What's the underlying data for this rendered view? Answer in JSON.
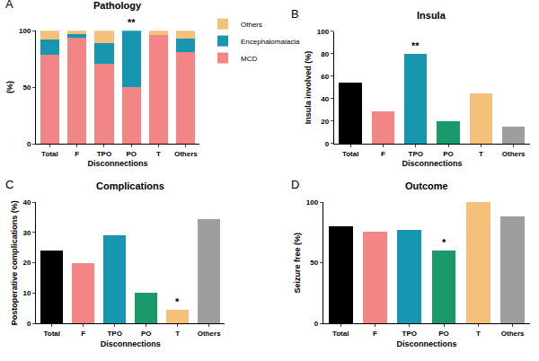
{
  "chart_data": [
    {
      "panel": "A",
      "type": "bar",
      "stacked": true,
      "title": "Pathology",
      "x_label": "Disconnections",
      "y_label": "(%)",
      "categories": [
        "Total",
        "F",
        "TPO",
        "PO",
        "T",
        "Others"
      ],
      "series": [
        {
          "name": "MCD",
          "color": "#f28585",
          "values": [
            79,
            94,
            71,
            50,
            96,
            81
          ]
        },
        {
          "name": "Encephalomalacia",
          "color": "#1796b0",
          "values": [
            13,
            3,
            18,
            50,
            0,
            12
          ]
        },
        {
          "name": "Others",
          "color": "#f5c07a",
          "values": [
            8,
            3,
            11,
            0,
            4,
            7
          ]
        }
      ],
      "ylim": [
        0,
        100
      ],
      "yticks": [
        0,
        50,
        100
      ],
      "legend": "right",
      "annotations": [
        {
          "category": "PO",
          "text": "**"
        }
      ]
    },
    {
      "panel": "B",
      "type": "bar",
      "title": "Insula",
      "x_label": "Disconnections",
      "y_label": "Insula involved (%)",
      "categories": [
        "Total",
        "F",
        "TPO",
        "PO",
        "T",
        "Others"
      ],
      "values": [
        54,
        29,
        80,
        20,
        45,
        15
      ],
      "colors": [
        "#000000",
        "#f28585",
        "#1796b0",
        "#1a9a6b",
        "#f5c07a",
        "#9e9e9e"
      ],
      "ylim": [
        0,
        100
      ],
      "yticks": [
        0,
        20,
        40,
        60,
        80,
        100
      ],
      "annotations": [
        {
          "category": "TPO",
          "text": "**"
        }
      ]
    },
    {
      "panel": "C",
      "type": "bar",
      "title": "Complications",
      "x_label": "Disconnections",
      "y_label": "Postoperative complications (%)",
      "categories": [
        "Total",
        "F",
        "TPO",
        "PO",
        "T",
        "Others"
      ],
      "values": [
        24,
        20,
        29,
        10,
        4.5,
        34.5
      ],
      "colors": [
        "#000000",
        "#f28585",
        "#1796b0",
        "#1a9a6b",
        "#f5c07a",
        "#9e9e9e"
      ],
      "ylim": [
        0,
        40
      ],
      "yticks": [
        0,
        10,
        20,
        30,
        40
      ],
      "annotations": [
        {
          "category": "T",
          "text": "*"
        }
      ]
    },
    {
      "panel": "D",
      "type": "bar",
      "title": "Outcome",
      "x_label": "Disconnections",
      "y_label": "Seizure free (%)",
      "categories": [
        "Total",
        "F",
        "TPO",
        "PO",
        "T",
        "Others"
      ],
      "values": [
        80,
        76,
        77,
        60,
        100,
        88
      ],
      "colors": [
        "#000000",
        "#f28585",
        "#1796b0",
        "#1a9a6b",
        "#f5c07a",
        "#9e9e9e"
      ],
      "ylim": [
        0,
        100
      ],
      "yticks": [
        0,
        50,
        100
      ],
      "annotations": [
        {
          "category": "PO",
          "text": "*"
        }
      ]
    }
  ]
}
